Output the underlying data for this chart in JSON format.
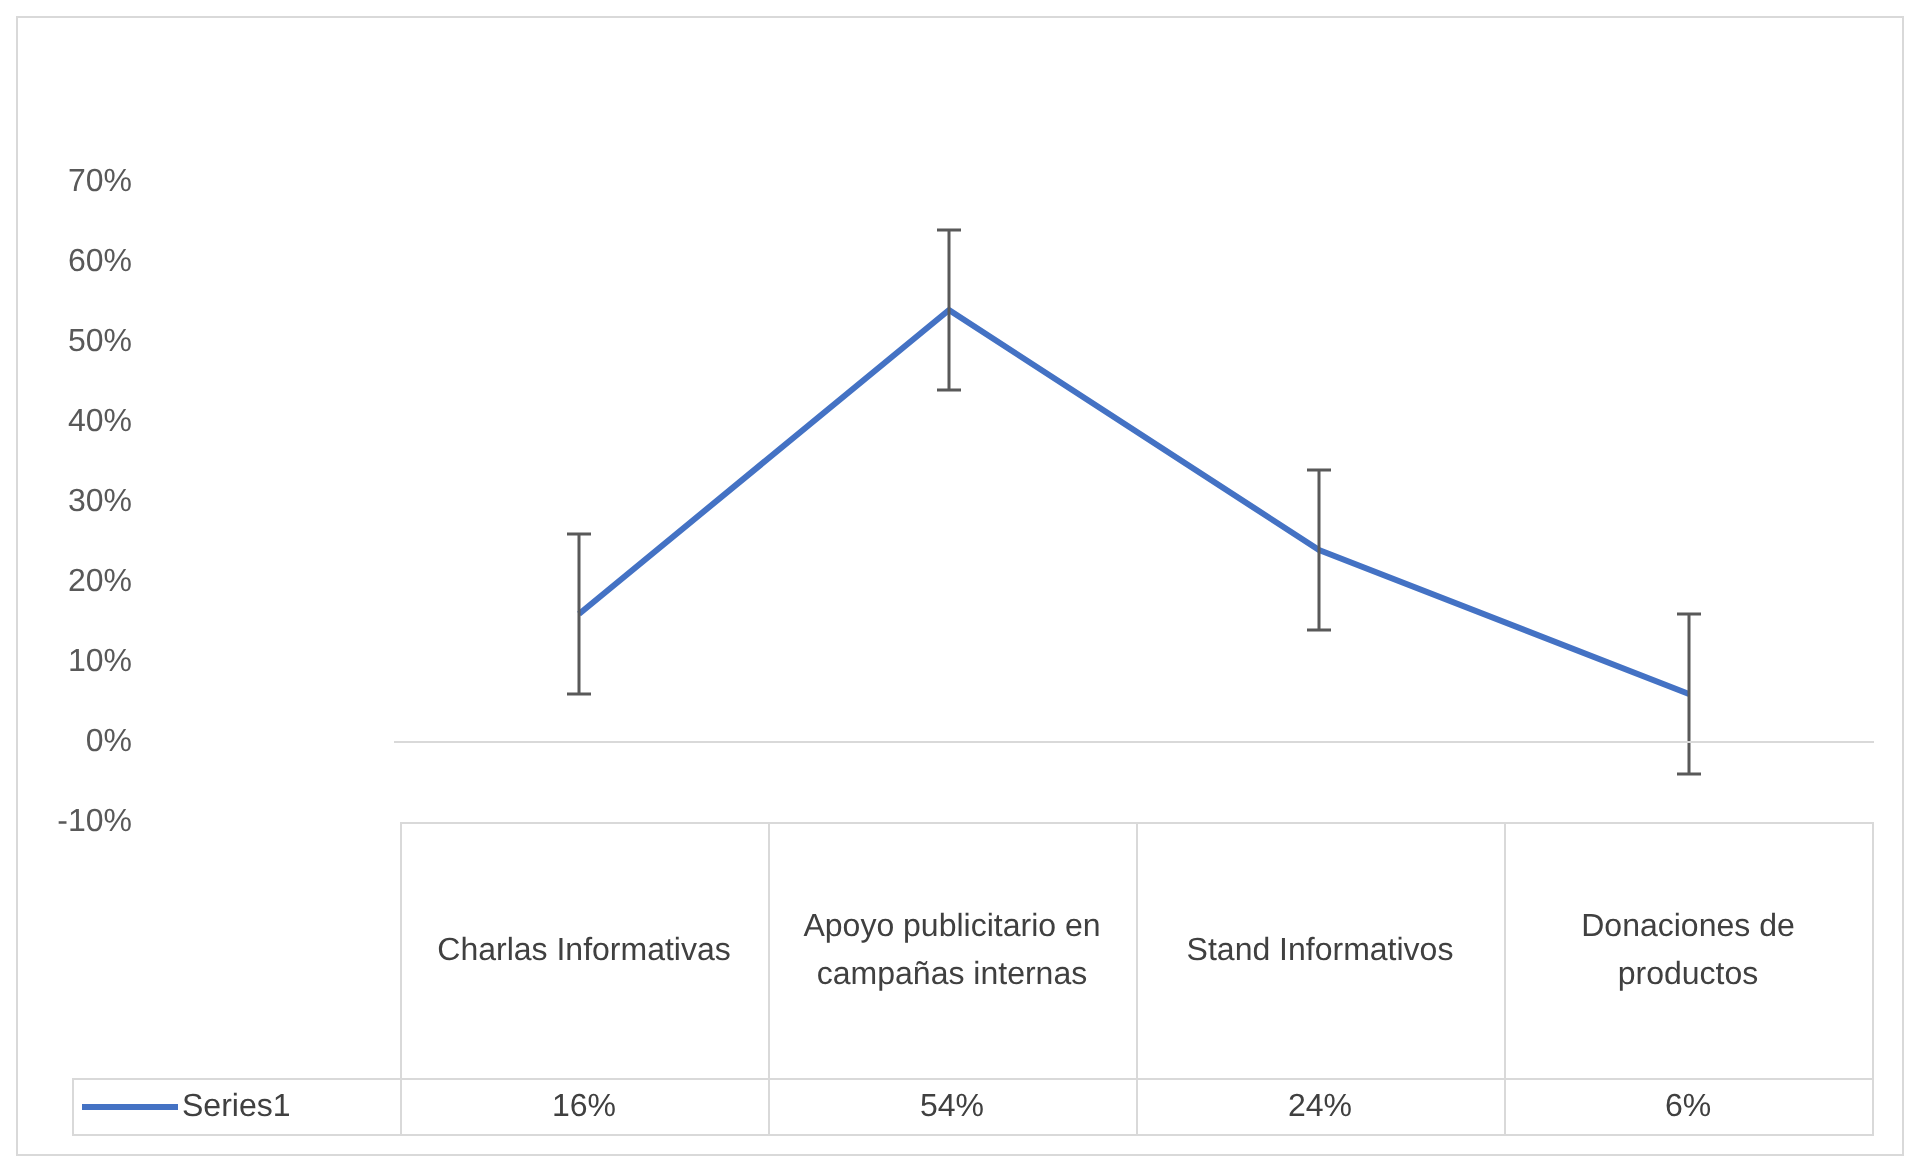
{
  "chart_data": {
    "type": "line",
    "categories": [
      "Charlas Informativas",
      "Apoyo publicitario en campañas internas",
      "Stand Informativos",
      "Donaciones de productos"
    ],
    "series": [
      {
        "name": "Series1",
        "color": "#4472c4",
        "values": [
          16,
          54,
          24,
          6
        ],
        "errors": [
          10,
          10,
          10,
          10
        ],
        "value_labels": [
          "16%",
          "54%",
          "24%",
          "6%"
        ]
      }
    ],
    "ylim": [
      -10,
      70
    ],
    "yticks": [
      {
        "value": -10,
        "label": "-10%"
      },
      {
        "value": 0,
        "label": "0%"
      },
      {
        "value": 10,
        "label": "10%"
      },
      {
        "value": 20,
        "label": "20%"
      },
      {
        "value": 30,
        "label": "30%"
      },
      {
        "value": 40,
        "label": "40%"
      },
      {
        "value": 50,
        "label": "50%"
      },
      {
        "value": 60,
        "label": "60%"
      },
      {
        "value": 70,
        "label": "70%"
      }
    ],
    "ref_lines": [
      {
        "axis": "y",
        "value": 0,
        "color": "#d9d9d9"
      }
    ],
    "grid": false,
    "legend": "bottom",
    "marker": "none",
    "line_style": "solid"
  }
}
